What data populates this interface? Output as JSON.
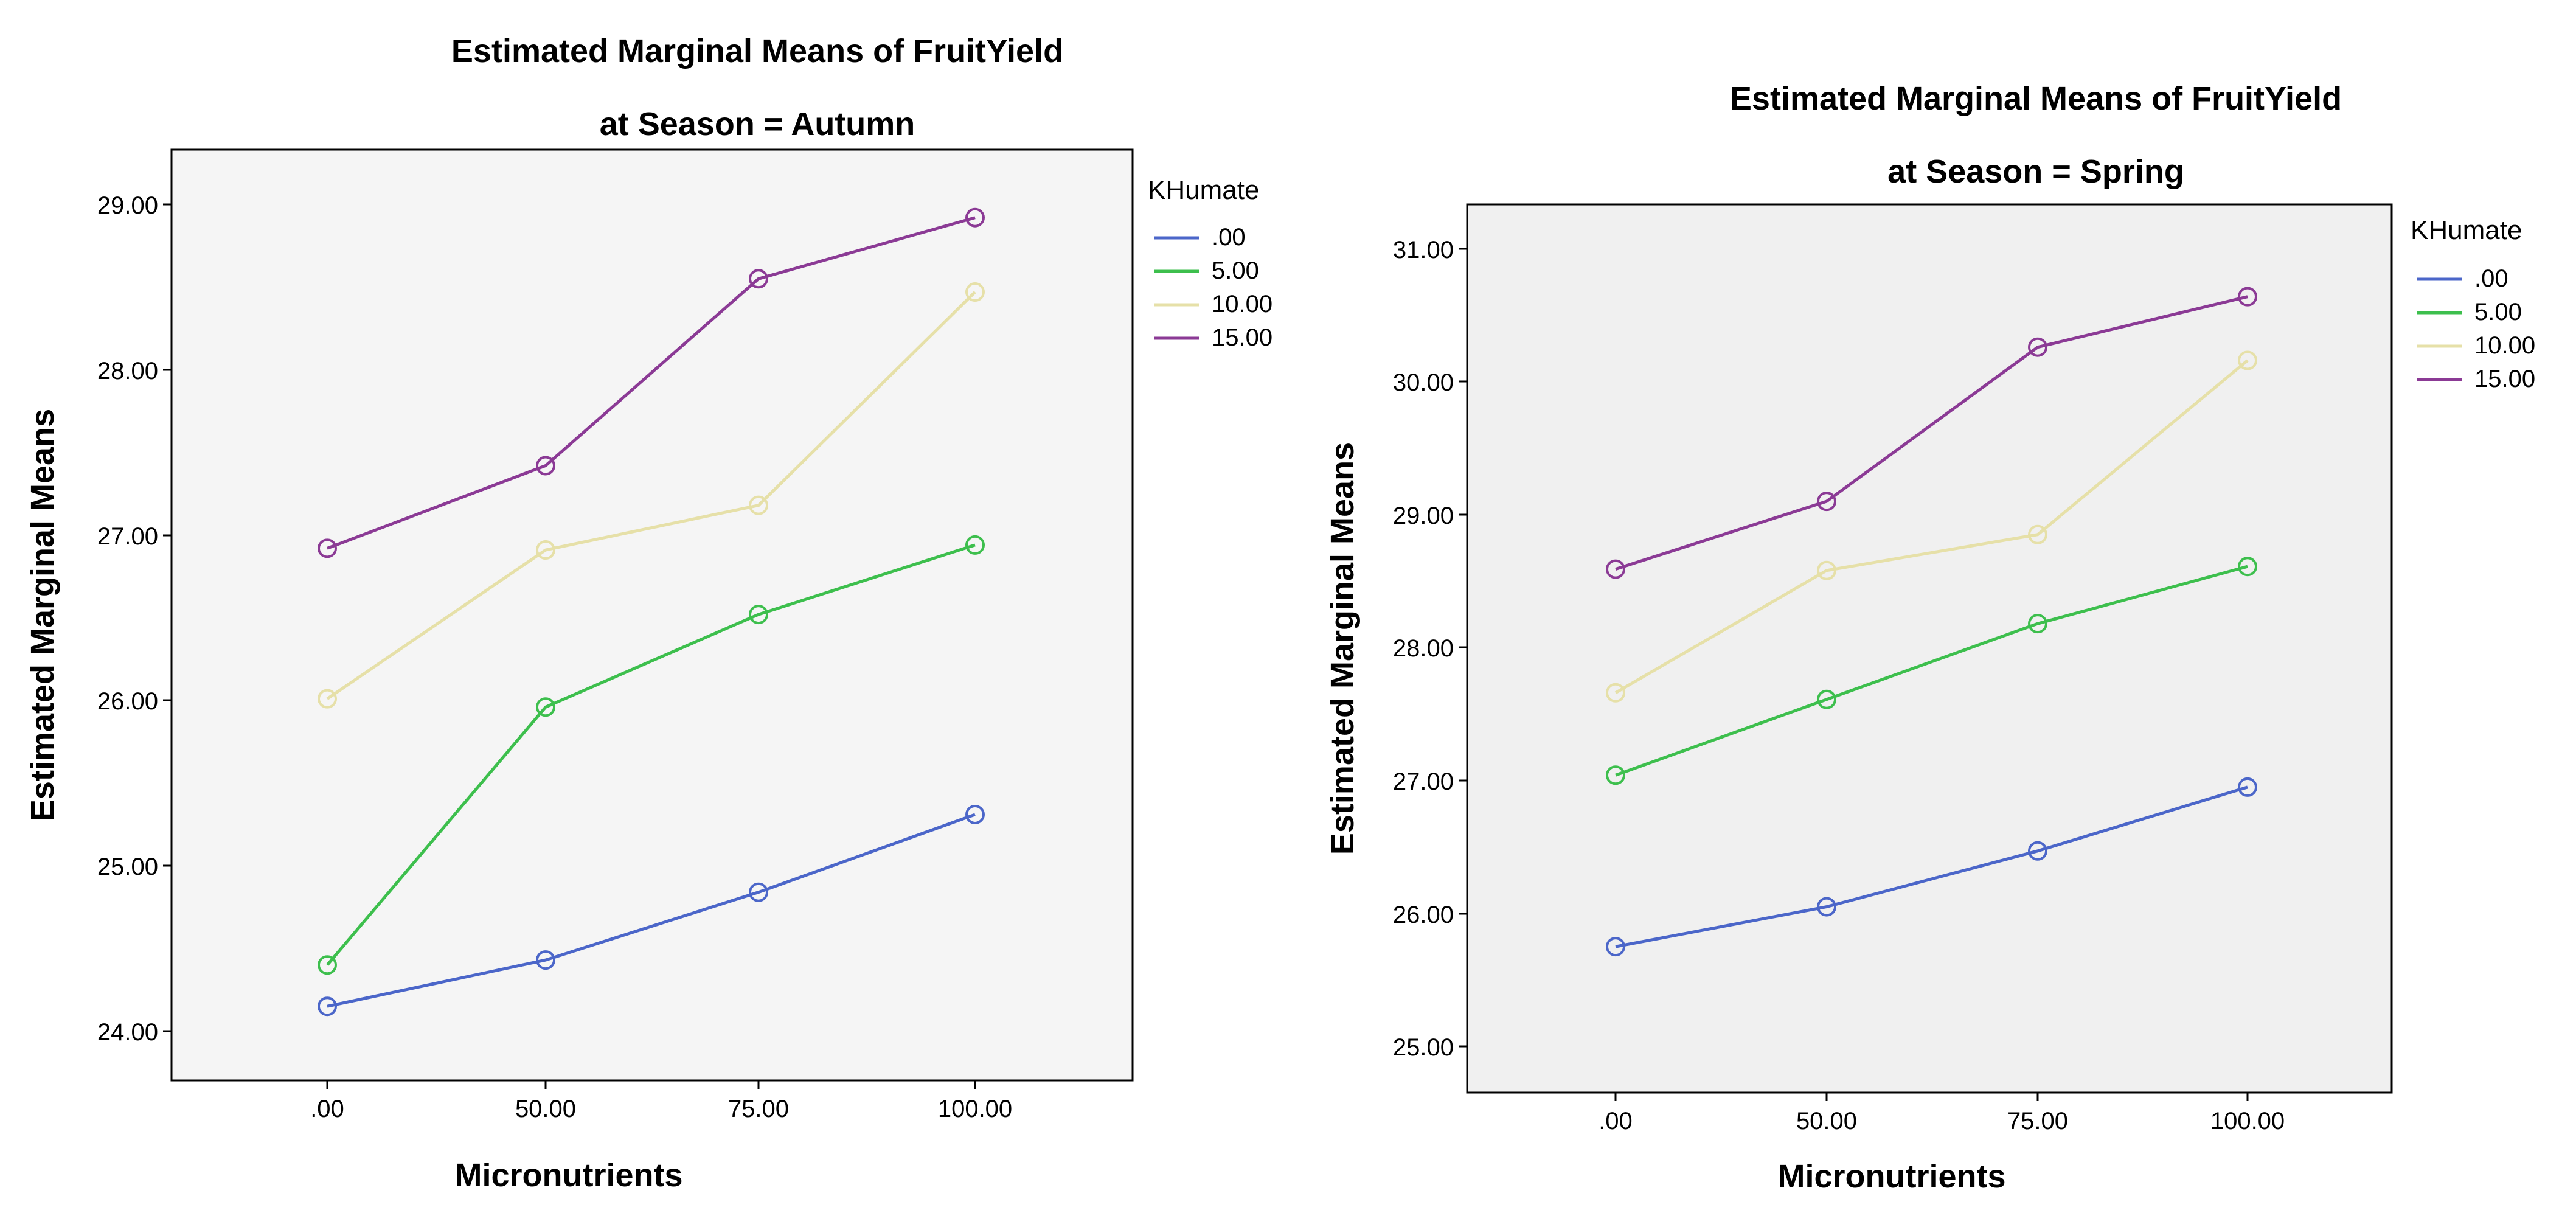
{
  "chart_data": [
    {
      "type": "line",
      "title": "Estimated Marginal Means of FruitYield",
      "subtitle": "at Season = Autumn",
      "xlabel": "Micronutrients",
      "ylabel": "Estimated Marginal Means",
      "categories": [
        ".00",
        "50.00",
        "75.00",
        "100.00"
      ],
      "yticks": [
        "24.00",
        "25.00",
        "26.00",
        "27.00",
        "28.00",
        "29.00"
      ],
      "ylim": [
        23.75,
        29.25
      ],
      "legend_title": "KHumate",
      "series": [
        {
          "name": ".00",
          "color": "#4b66c9",
          "values": [
            24.15,
            24.43,
            24.84,
            25.31
          ]
        },
        {
          "name": "5.00",
          "color": "#3dbf4d",
          "values": [
            24.4,
            25.96,
            26.52,
            26.94
          ]
        },
        {
          "name": "10.00",
          "color": "#e6e0a8",
          "values": [
            26.01,
            26.91,
            27.18,
            28.47
          ]
        },
        {
          "name": "15.00",
          "color": "#8b3a95",
          "values": [
            26.92,
            27.42,
            28.55,
            28.92
          ]
        }
      ]
    },
    {
      "type": "line",
      "title": "Estimated Marginal Means of FruitYield",
      "subtitle": "at Season = Spring",
      "xlabel": "Micronutrients",
      "ylabel": "Estimated Marginal Means",
      "categories": [
        ".00",
        "50.00",
        "75.00",
        "100.00"
      ],
      "yticks": [
        "25.00",
        "26.00",
        "27.00",
        "28.00",
        "29.00",
        "30.00",
        "31.00"
      ],
      "ylim": [
        24.7,
        31.3
      ],
      "legend_title": "KHumate",
      "series": [
        {
          "name": ".00",
          "color": "#4b66c9",
          "values": [
            25.75,
            26.05,
            26.47,
            26.95
          ]
        },
        {
          "name": "5.00",
          "color": "#3dbf4d",
          "values": [
            27.04,
            27.61,
            28.18,
            28.61
          ]
        },
        {
          "name": "10.00",
          "color": "#e6e0a8",
          "values": [
            27.66,
            28.58,
            28.85,
            30.16
          ]
        },
        {
          "name": "15.00",
          "color": "#8b3a95",
          "values": [
            28.59,
            29.1,
            30.26,
            30.64
          ]
        }
      ]
    }
  ]
}
